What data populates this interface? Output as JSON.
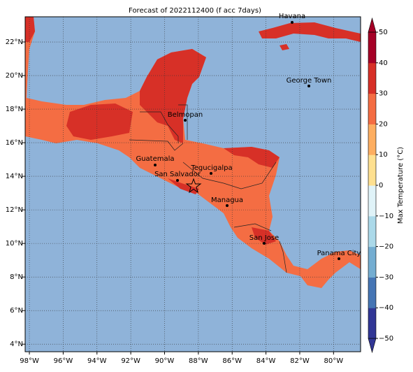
{
  "title": "Forecast of 2022112400 (f acc 7days)",
  "map": {
    "xlim": [
      -98.25,
      -78.4
    ],
    "ylim": [
      3.55,
      23.5
    ],
    "grid": true,
    "ocean_color": "#8fb3d9",
    "land_color": "#f46d43",
    "hot_color": "#d73027",
    "xticks": [
      {
        "value": -98,
        "label": "98°W"
      },
      {
        "value": -96,
        "label": "96°W"
      },
      {
        "value": -94,
        "label": "94°W"
      },
      {
        "value": -92,
        "label": "92°W"
      },
      {
        "value": -90,
        "label": "90°W"
      },
      {
        "value": -88,
        "label": "88°W"
      },
      {
        "value": -86,
        "label": "86°W"
      },
      {
        "value": -84,
        "label": "84°W"
      },
      {
        "value": -82,
        "label": "82°W"
      },
      {
        "value": -80,
        "label": "80°W"
      }
    ],
    "yticks": [
      {
        "value": 4,
        "label": "4°N"
      },
      {
        "value": 6,
        "label": "6°N"
      },
      {
        "value": 8,
        "label": "8°N"
      },
      {
        "value": 10,
        "label": "10°N"
      },
      {
        "value": 12,
        "label": "12°N"
      },
      {
        "value": 14,
        "label": "14°N"
      },
      {
        "value": 16,
        "label": "16°N"
      },
      {
        "value": 18,
        "label": "18°N"
      },
      {
        "value": 20,
        "label": "20°N"
      },
      {
        "value": 22,
        "label": "22°N"
      }
    ],
    "cities": [
      "Havana",
      "George Town",
      "Belmopan",
      "Guatemala",
      "San Salvador",
      "Tegucigalpa",
      "Managua",
      "San Jose",
      "Panama City"
    ]
  },
  "colorbar": {
    "label": "Max Temperature (°C)",
    "lim": [
      -50,
      50
    ],
    "ticks": [
      50,
      40,
      30,
      20,
      10,
      0,
      {
        "value": -10,
        "label": "−10"
      },
      {
        "value": -20,
        "label": "−20"
      },
      {
        "value": -30,
        "label": "−30"
      },
      {
        "value": -40,
        "label": "−40"
      },
      {
        "value": -50,
        "label": "−50"
      }
    ],
    "colors": [
      "#313695",
      "#4575b4",
      "#74add1",
      "#abd9e9",
      "#e0f3f8",
      "#fee090",
      "#fdae61",
      "#f46d43",
      "#d73027",
      "#a50026"
    ]
  }
}
